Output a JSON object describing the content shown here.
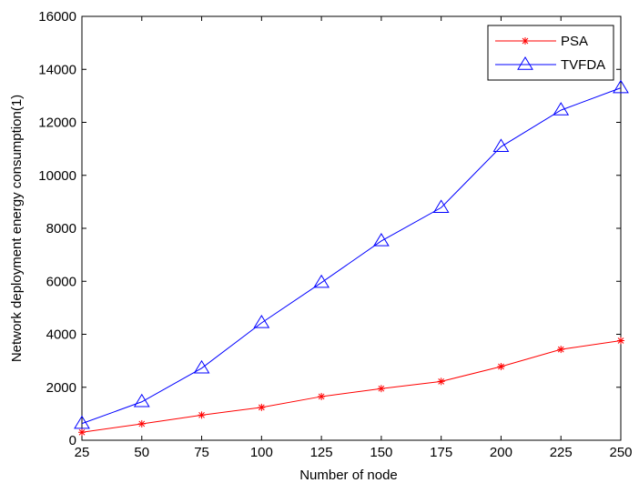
{
  "chart_data": {
    "type": "line",
    "title": "",
    "xlabel": "Number of node",
    "ylabel": "Network deployment energy consumption(1)",
    "categories": [
      "25",
      "50",
      "75",
      "100",
      "125",
      "150",
      "175",
      "200",
      "225",
      "250"
    ],
    "x": [
      25,
      50,
      75,
      100,
      125,
      150,
      175,
      200,
      225,
      250
    ],
    "xlim": [
      25,
      250
    ],
    "ylim": [
      0,
      16000
    ],
    "yticks": [
      "0",
      "2000",
      "4000",
      "6000",
      "8000",
      "10000",
      "12000",
      "14000",
      "16000"
    ],
    "ytick_values": [
      0,
      2000,
      4000,
      6000,
      8000,
      10000,
      12000,
      14000,
      16000
    ],
    "grid": false,
    "legend_position": "top-right",
    "series": [
      {
        "name": "PSA",
        "color": "#ff0000",
        "marker": "star",
        "values": [
          300,
          620,
          950,
          1240,
          1650,
          1950,
          2220,
          2780,
          3430,
          3760
        ]
      },
      {
        "name": "TVFDA",
        "color": "#0000ff",
        "marker": "triangle",
        "values": [
          630,
          1450,
          2720,
          4430,
          5950,
          7520,
          8780,
          11080,
          12460,
          13300
        ]
      }
    ]
  }
}
